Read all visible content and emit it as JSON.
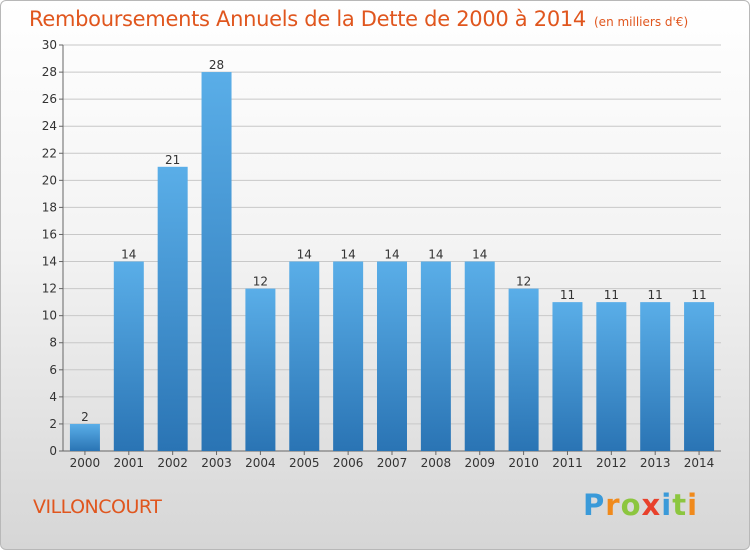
{
  "header": {
    "title": "Remboursements Annuels de la Dette de 2000 à 2014",
    "unit": "(en milliers d'€)"
  },
  "footer": {
    "commune": "VILLONCOURT",
    "logo_letters": [
      "P",
      "r",
      "o",
      "x",
      "i",
      "t",
      "i"
    ]
  },
  "colors": {
    "bar_top": "#5aaee8",
    "bar_bottom": "#2a74b4",
    "title": "#e0561e",
    "grid": "#c8c8c8"
  },
  "chart_data": {
    "type": "bar",
    "title": "Remboursements Annuels de la Dette de 2000 à 2014",
    "xlabel": "",
    "ylabel": "",
    "categories": [
      "2000",
      "2001",
      "2002",
      "2003",
      "2004",
      "2005",
      "2006",
      "2007",
      "2008",
      "2009",
      "2010",
      "2011",
      "2012",
      "2013",
      "2014"
    ],
    "values": [
      2,
      14,
      21,
      28,
      12,
      14,
      14,
      14,
      14,
      14,
      12,
      11,
      11,
      11,
      11
    ],
    "ylim": [
      0,
      30
    ],
    "yticks": [
      0,
      2,
      4,
      6,
      8,
      10,
      12,
      14,
      16,
      18,
      20,
      22,
      24,
      26,
      28,
      30
    ],
    "grid": true,
    "legend": "none"
  }
}
